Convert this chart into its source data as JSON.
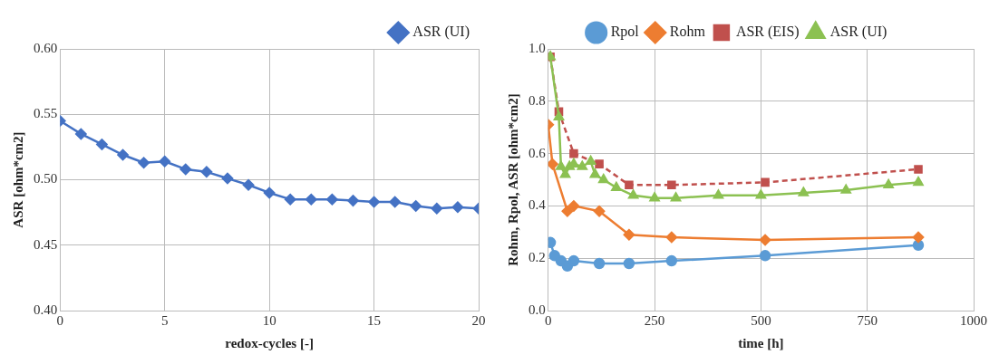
{
  "chart_data": [
    {
      "type": "line",
      "xlabel": "redox-cycles [-]",
      "ylabel": "ASR [ohm*cm2]",
      "xlim": [
        0,
        20
      ],
      "xticks": [
        0,
        5,
        10,
        15,
        20
      ],
      "ylim": [
        0.4,
        0.6
      ],
      "yticks": [
        {
          "value": 0.4,
          "label": "0.40"
        },
        {
          "value": 0.45,
          "label": "0.45"
        },
        {
          "value": 0.5,
          "label": "0.50"
        },
        {
          "value": 0.55,
          "label": "0.55"
        },
        {
          "value": 0.6,
          "label": "0.60"
        }
      ],
      "grid": true,
      "legend": "top right",
      "marker": "diamond",
      "line_style": "solid",
      "series": [
        {
          "name": "ASR (UI)",
          "color": "#4472c4",
          "x": [
            0,
            1,
            2,
            3,
            4,
            5,
            6,
            7,
            8,
            9,
            10,
            11,
            12,
            13,
            14,
            15,
            16,
            17,
            18,
            19,
            20
          ],
          "values": [
            0.545,
            0.535,
            0.527,
            0.519,
            0.513,
            0.514,
            0.508,
            0.506,
            0.501,
            0.496,
            0.49,
            0.485,
            0.485,
            0.485,
            0.484,
            0.483,
            0.483,
            0.48,
            0.478,
            0.479,
            0.478
          ]
        }
      ]
    },
    {
      "type": "line",
      "xlabel": "time [h]",
      "ylabel": "Rohm, Rpol, ASR [ohm*cm2]",
      "xlim": [
        0,
        1000
      ],
      "xticks": [
        0,
        250,
        500,
        750,
        1000
      ],
      "ylim": [
        0,
        1
      ],
      "yticks": [
        {
          "value": 0,
          "label": "0.0"
        },
        {
          "value": 0.2,
          "label": "0.2"
        },
        {
          "value": 0.4,
          "label": "0.4"
        },
        {
          "value": 0.6,
          "label": "0.6"
        },
        {
          "value": 0.8,
          "label": "0.8"
        },
        {
          "value": 1,
          "label": "1.0"
        }
      ],
      "grid": true,
      "legend": "top",
      "line_style": "solid",
      "series": [
        {
          "name": "Rpol",
          "color": "#5b9bd5",
          "marker": "circle",
          "x": [
            5,
            15,
            30,
            45,
            60,
            120,
            190,
            290,
            510,
            870
          ],
          "values": [
            0.26,
            0.21,
            0.19,
            0.17,
            0.19,
            0.18,
            0.18,
            0.19,
            0.21,
            0.25
          ]
        },
        {
          "name": "Rohm",
          "color": "#ed7d31",
          "marker": "diamond",
          "x": [
            0,
            10,
            45,
            60,
            120,
            190,
            290,
            510,
            870
          ],
          "values": [
            0.71,
            0.56,
            0.38,
            0.4,
            0.38,
            0.29,
            0.28,
            0.27,
            0.28
          ]
        },
        {
          "name": "ASR (EIS)",
          "color": "#c0504d",
          "marker": "square",
          "line_style": "dashed",
          "x": [
            5,
            25,
            60,
            120,
            190,
            290,
            510,
            870
          ],
          "values": [
            0.97,
            0.76,
            0.6,
            0.56,
            0.48,
            0.48,
            0.49,
            0.54
          ]
        },
        {
          "name": "ASR (UI)",
          "color": "#8cc152",
          "marker": "triangle",
          "x": [
            5,
            25,
            30,
            40,
            50,
            60,
            80,
            100,
            110,
            130,
            160,
            200,
            250,
            300,
            400,
            500,
            600,
            700,
            800,
            870
          ],
          "values": [
            0.97,
            0.74,
            0.55,
            0.52,
            0.55,
            0.56,
            0.55,
            0.57,
            0.52,
            0.5,
            0.47,
            0.44,
            0.43,
            0.43,
            0.44,
            0.44,
            0.45,
            0.46,
            0.48,
            0.49
          ]
        }
      ]
    }
  ]
}
